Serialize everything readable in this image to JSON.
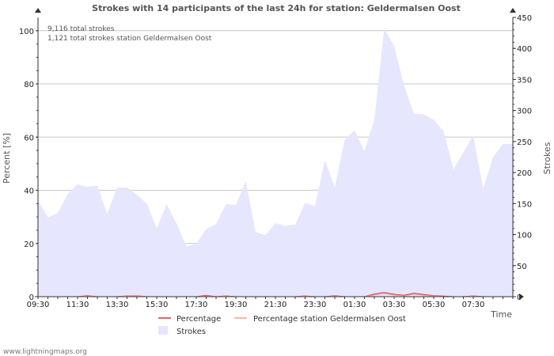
{
  "chart_data": {
    "type": "area",
    "title": "Strokes with 14 participants of the last 24h for station: Geldermalsen Oost",
    "xlabel": "Time",
    "ylabel_left": "Percent   [%]",
    "ylabel_right": "Strokes",
    "ylim_left": [
      0,
      105
    ],
    "ylim_right": [
      0,
      450
    ],
    "y_ticks_left": [
      "0",
      "20",
      "40",
      "60",
      "80",
      "100"
    ],
    "y_ticks_right": [
      "0",
      "50",
      "100",
      "150",
      "200",
      "250",
      "300",
      "350",
      "400",
      "450"
    ],
    "x_ticks": [
      "09:30",
      "11:30",
      "13:30",
      "15:30",
      "17:30",
      "19:30",
      "21:30",
      "23:30",
      "01:30",
      "03:30",
      "05:30",
      "07:30"
    ],
    "annotations": [
      "9,116 total strokes",
      "1,121 total strokes station Geldermalsen Oost"
    ],
    "series": [
      {
        "name": "Strokes",
        "axis": "right",
        "color": "#e6e6ff",
        "values": [
          155,
          128,
          135,
          165,
          181,
          177,
          179,
          133,
          176,
          176,
          164,
          150,
          110,
          149,
          118,
          81,
          85,
          109,
          117,
          149,
          148,
          186,
          104,
          99,
          118,
          114,
          116,
          151,
          146,
          220,
          176,
          253,
          268,
          234,
          285,
          432,
          404,
          340,
          295,
          294,
          285,
          267,
          205,
          233,
          260,
          174,
          225,
          246
        ]
      },
      {
        "name": "Percentage",
        "axis": "left",
        "color": "#cc3344",
        "values": [
          0,
          0,
          0,
          0,
          0,
          0.4,
          0,
          0,
          0,
          0.3,
          0.4,
          0,
          0,
          0,
          0,
          0,
          0,
          0.5,
          0,
          0.3,
          0,
          0,
          0,
          0,
          0,
          0,
          0,
          0.3,
          0,
          0,
          0.4,
          0,
          0,
          0,
          1.0,
          1.6,
          0.9,
          0.5,
          1.3,
          0.8,
          0.4,
          0.2,
          0,
          0,
          0.3,
          0,
          0,
          0
        ]
      },
      {
        "name": "Percentage station Geldermalsen Oost",
        "axis": "left",
        "color": "#f4a088",
        "values": [
          0,
          0,
          0,
          0,
          0,
          0.2,
          0,
          0,
          0,
          0.2,
          0.3,
          0,
          0,
          0,
          0,
          0,
          0,
          0.3,
          0,
          0.2,
          0,
          0,
          0,
          0,
          0,
          0,
          0,
          0.2,
          0,
          0,
          0.2,
          0,
          0,
          0,
          0.6,
          1.1,
          0.6,
          0.3,
          0.9,
          0.5,
          0.2,
          0.1,
          0,
          0,
          0.2,
          0,
          0,
          0
        ]
      }
    ]
  },
  "footer": {
    "watermark": "www.lightningmaps.org"
  }
}
